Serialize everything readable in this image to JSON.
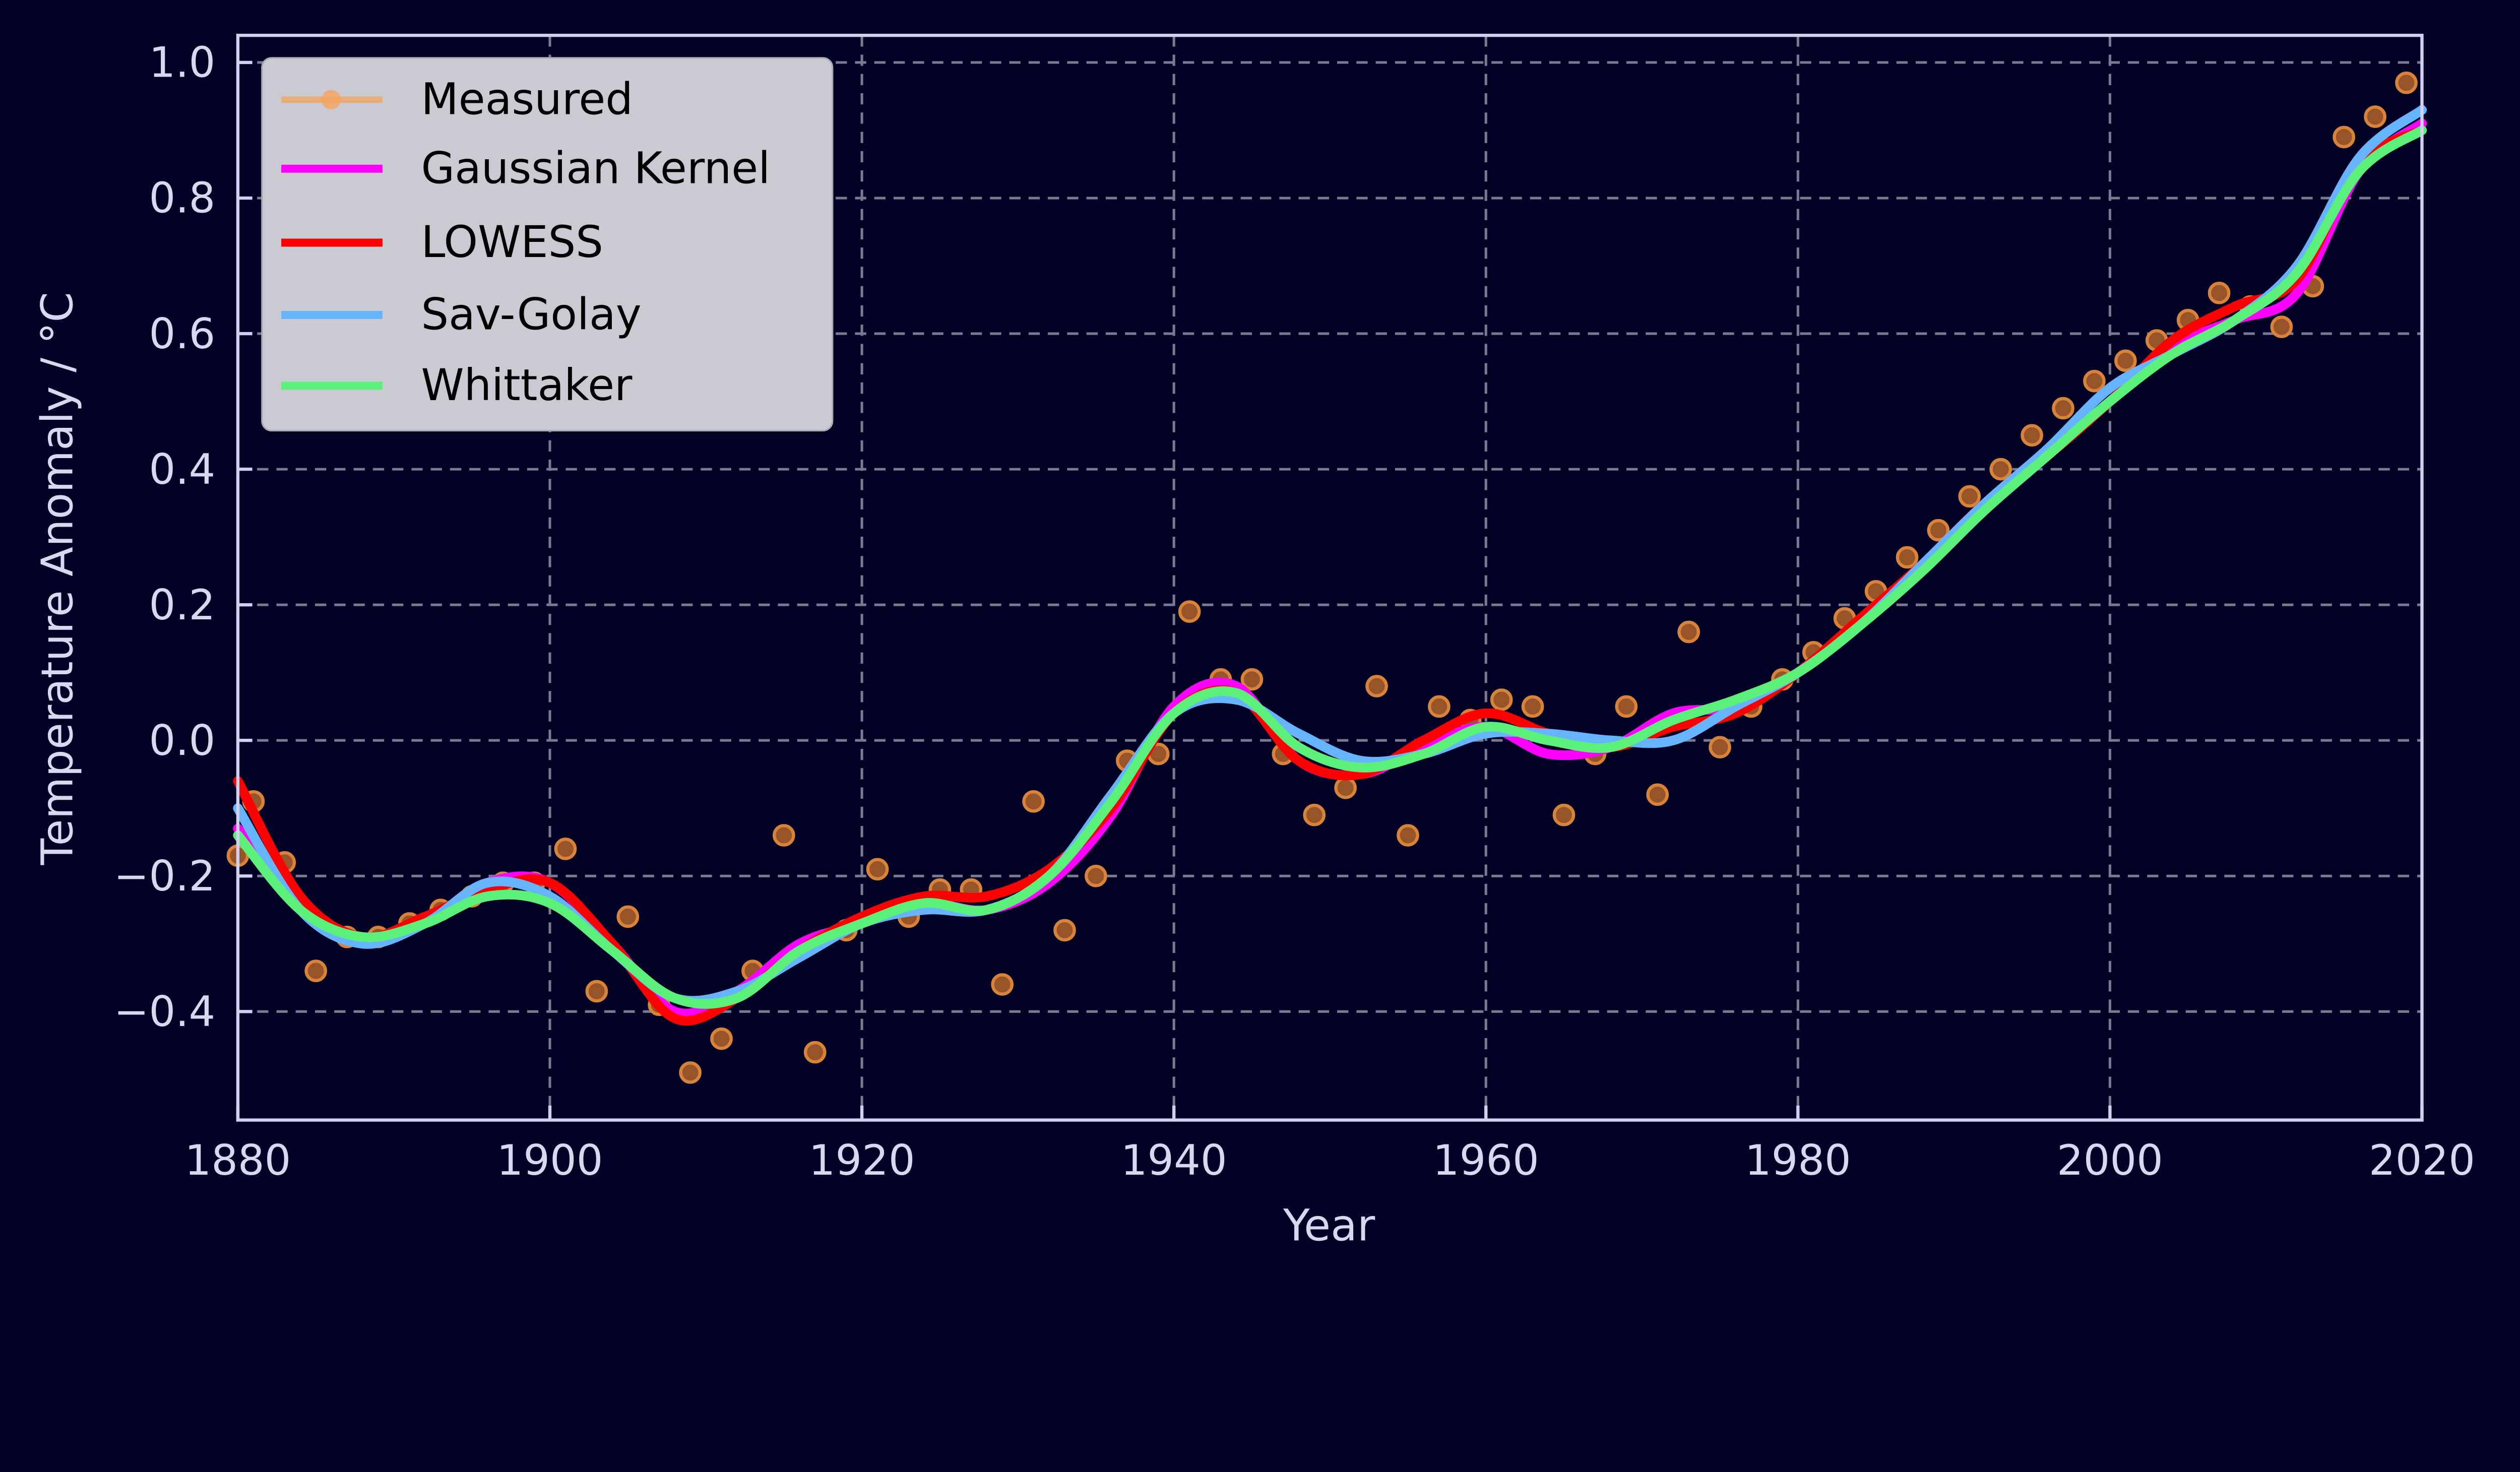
{
  "chart_data": {
    "type": "line",
    "xlabel": "Year",
    "ylabel": "Temperature Anomaly / °C",
    "xlim": [
      1880,
      2020
    ],
    "ylim": [
      -0.56,
      1.04
    ],
    "xticks": [
      1880,
      1900,
      1920,
      1940,
      1960,
      1980,
      2000,
      2020
    ],
    "yticks": [
      -0.4,
      -0.2,
      0.0,
      0.2,
      0.4,
      0.6,
      0.8,
      1.0
    ],
    "ytick_labels": [
      "−0.4",
      "−0.2",
      "0.0",
      "0.2",
      "0.4",
      "0.6",
      "0.8",
      "1.0"
    ],
    "xtick_labels": [
      "1880",
      "1900",
      "1920",
      "1940",
      "1960",
      "1980",
      "2000",
      "2020"
    ],
    "grid": true,
    "legend_position": "upper-left",
    "colors": {
      "background": "#000024",
      "axes": "#d0d0f0",
      "grid": "#7a7a90",
      "legend_bg": "#cacad2"
    },
    "measured": {
      "name": "Measured",
      "color": "#f4a460",
      "x": [
        1880,
        1881,
        1883,
        1885,
        1887,
        1889,
        1891,
        1893,
        1895,
        1897,
        1899,
        1901,
        1903,
        1905,
        1907,
        1909,
        1911,
        1913,
        1915,
        1917,
        1919,
        1921,
        1923,
        1925,
        1927,
        1929,
        1931,
        1933,
        1935,
        1937,
        1939,
        1941,
        1943,
        1945,
        1947,
        1949,
        1951,
        1953,
        1955,
        1957,
        1959,
        1961,
        1963,
        1965,
        1967,
        1969,
        1971,
        1973,
        1975,
        1977,
        1979,
        1981,
        1983,
        1985,
        1987,
        1989,
        1991,
        1993,
        1995,
        1997,
        1999,
        2001,
        2003,
        2005,
        2007,
        2009,
        2011,
        2013,
        2015,
        2017,
        2019
      ],
      "y": [
        -0.17,
        -0.09,
        -0.18,
        -0.34,
        -0.29,
        -0.29,
        -0.27,
        -0.25,
        -0.23,
        -0.21,
        -0.21,
        -0.16,
        -0.37,
        -0.26,
        -0.39,
        -0.49,
        -0.44,
        -0.34,
        -0.14,
        -0.46,
        -0.28,
        -0.19,
        -0.26,
        -0.22,
        -0.22,
        -0.36,
        -0.09,
        -0.28,
        -0.2,
        -0.03,
        -0.02,
        0.19,
        0.09,
        0.09,
        -0.02,
        -0.11,
        -0.07,
        0.08,
        -0.14,
        0.05,
        0.03,
        0.06,
        0.05,
        -0.11,
        -0.02,
        0.05,
        -0.08,
        0.16,
        -0.01,
        0.05,
        0.09,
        0.13,
        0.18,
        0.22,
        0.27,
        0.31,
        0.36,
        0.4,
        0.45,
        0.49,
        0.53,
        0.56,
        0.59,
        0.62,
        0.66,
        0.64,
        0.61,
        0.67,
        0.89,
        0.92,
        0.97
      ]
    },
    "x": [
      1880,
      1884,
      1888,
      1892,
      1896,
      1900,
      1904,
      1908,
      1912,
      1916,
      1920,
      1924,
      1928,
      1932,
      1936,
      1940,
      1944,
      1948,
      1952,
      1956,
      1960,
      1964,
      1968,
      1972,
      1976,
      1980,
      1984,
      1988,
      1992,
      1996,
      2000,
      2004,
      2008,
      2012,
      2016,
      2020
    ],
    "series": [
      {
        "name": "Gaussian Kernel",
        "color": "#ff00ff",
        "values": [
          -0.13,
          -0.25,
          -0.29,
          -0.27,
          -0.21,
          -0.21,
          -0.3,
          -0.4,
          -0.37,
          -0.3,
          -0.27,
          -0.24,
          -0.25,
          -0.21,
          -0.11,
          0.05,
          0.08,
          -0.03,
          -0.05,
          -0.01,
          0.02,
          -0.02,
          -0.01,
          0.04,
          0.05,
          0.1,
          0.17,
          0.25,
          0.34,
          0.42,
          0.5,
          0.58,
          0.62,
          0.66,
          0.84,
          0.91
        ]
      },
      {
        "name": "LOWESS",
        "color": "#ff0000",
        "values": [
          -0.06,
          -0.23,
          -0.29,
          -0.26,
          -0.22,
          -0.21,
          -0.3,
          -0.41,
          -0.38,
          -0.31,
          -0.26,
          -0.23,
          -0.23,
          -0.19,
          -0.1,
          0.04,
          0.07,
          -0.03,
          -0.05,
          0.0,
          0.04,
          0.01,
          -0.01,
          0.02,
          0.04,
          0.1,
          0.18,
          0.26,
          0.35,
          0.42,
          0.5,
          0.59,
          0.64,
          0.68,
          0.85,
          0.9
        ]
      },
      {
        "name": "Sav-Golay",
        "color": "#66b3ff",
        "values": [
          -0.1,
          -0.25,
          -0.3,
          -0.27,
          -0.21,
          -0.23,
          -0.31,
          -0.38,
          -0.37,
          -0.32,
          -0.27,
          -0.25,
          -0.25,
          -0.2,
          -0.08,
          0.04,
          0.06,
          0.01,
          -0.03,
          -0.02,
          0.01,
          0.01,
          0.0,
          0.0,
          0.05,
          0.1,
          0.17,
          0.26,
          0.35,
          0.43,
          0.52,
          0.57,
          0.62,
          0.7,
          0.86,
          0.93
        ]
      },
      {
        "name": "Whittaker",
        "color": "#5af07a",
        "values": [
          -0.14,
          -0.25,
          -0.29,
          -0.27,
          -0.23,
          -0.24,
          -0.31,
          -0.38,
          -0.38,
          -0.31,
          -0.27,
          -0.24,
          -0.25,
          -0.2,
          -0.09,
          0.04,
          0.07,
          -0.01,
          -0.04,
          -0.02,
          0.02,
          0.0,
          -0.01,
          0.03,
          0.06,
          0.1,
          0.17,
          0.25,
          0.34,
          0.42,
          0.5,
          0.57,
          0.62,
          0.69,
          0.84,
          0.9
        ]
      }
    ]
  }
}
